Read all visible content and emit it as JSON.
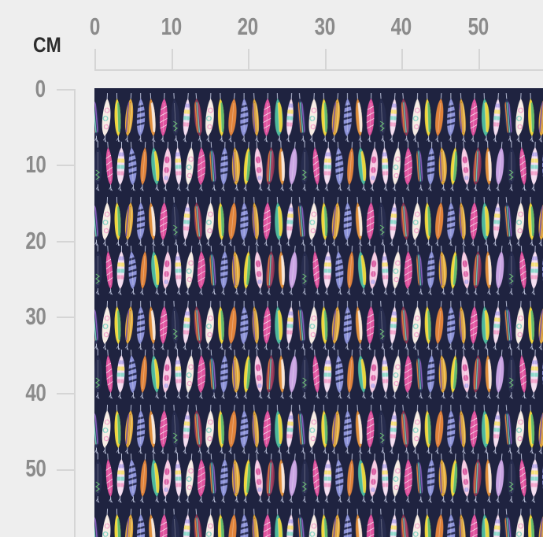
{
  "ruler": {
    "unit": "CM",
    "top_ticks": [
      "0",
      "10",
      "20",
      "30",
      "40",
      "50"
    ],
    "left_ticks": [
      "0",
      "10",
      "20",
      "30",
      "40",
      "50"
    ],
    "colors": {
      "background": "#eeeeee",
      "line": "#d5d5d5",
      "tick_label": "#8b8b8b",
      "unit_label": "#2d2d2d"
    }
  },
  "fabric": {
    "pattern_name": "feathers-on-navy",
    "background": "#1f2340",
    "stem_color": "#c9cfe8",
    "types": {
      "dark_stripe": {
        "fill": "#2b3058",
        "deco": "vstripes",
        "accents": [
          "#e0813a",
          "#41b09f",
          "#8b5fc0"
        ]
      },
      "cream_swirl": {
        "fill": "#f7ece4",
        "deco": "swirl",
        "accents": [
          "#f2a3cb",
          "#83d3c4"
        ]
      },
      "yellow": {
        "fill": "#f1d73a",
        "deco": "sideedge",
        "accents": [
          "#5cb96d"
        ]
      },
      "mustard": {
        "fill": "#e3a93c",
        "deco": "vstripes",
        "accents": [
          "#7350a8",
          "#c8861f",
          "#f0c96a"
        ]
      },
      "periwinkle": {
        "fill": "#8e94d9",
        "deco": "bars",
        "accents": [
          "#2b3058"
        ]
      },
      "magenta": {
        "fill": "#e0539f",
        "deco": "hatch",
        "accents": [
          "#ffffff"
        ]
      },
      "gold": {
        "fill": "#e2913e",
        "deco": "sideedge",
        "accents": [
          "#f7ece4"
        ]
      },
      "pastel_bands": {
        "fill": "#f4ddf0",
        "deco": "bands",
        "accents": [
          "#b9a9e9",
          "#f6e07b",
          "#90d9cd",
          "#f2a3cb"
        ]
      },
      "navy_scribble": {
        "fill": "#272c4e",
        "deco": "scribble",
        "accents": [
          "#66c56e"
        ]
      },
      "lavender": {
        "fill": "#caa4e3",
        "deco": "none",
        "accents": []
      },
      "pink_cream": {
        "fill": "#f6cbe3",
        "deco": "blobs",
        "accents": [
          "#da58a0",
          "#b9a9e9"
        ]
      },
      "maroon": {
        "fill": "#8b3552",
        "deco": "vstripes",
        "accents": [
          "#e0813a",
          "#41b09f",
          "#b5486e"
        ]
      },
      "teal": {
        "fill": "#4eb99c",
        "deco": "sideedge",
        "accents": [
          "#f1d73a"
        ]
      },
      "orange": {
        "fill": "#e0833b",
        "deco": "none",
        "accents": [
          "#f7e3c4"
        ]
      }
    },
    "row_a": [
      "dark_stripe",
      "cream_swirl",
      "yellow",
      "mustard",
      "periwinkle",
      "gold",
      "magenta",
      "navy_scribble",
      "pastel_bands",
      "maroon",
      "cream_swirl",
      "yellow",
      "orange",
      "periwinkle",
      "mustard",
      "magenta",
      "teal",
      "pastel_bands"
    ],
    "row_b": [
      "navy_scribble",
      "magenta",
      "pastel_bands",
      "periwinkle",
      "orange",
      "teal",
      "pink_cream",
      "pastel_bands",
      "cream_swirl",
      "magenta",
      "dark_stripe",
      "periwinkle",
      "mustard",
      "yellow",
      "pink_cream",
      "maroon",
      "gold",
      "lavender"
    ]
  }
}
